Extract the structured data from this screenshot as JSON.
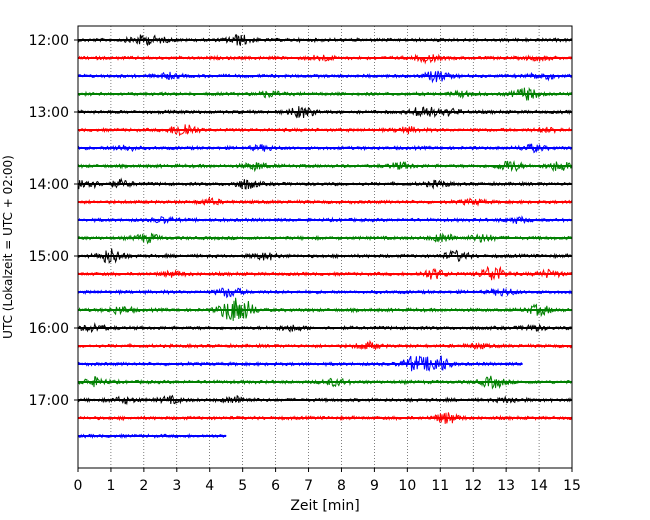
{
  "chart_data": {
    "type": "line",
    "title": "",
    "xlabel": "Zeit  [min]",
    "ylabel": "UTC (Lokalzeit = UTC + 02:00)",
    "xlim": [
      0,
      15
    ],
    "x_ticks": [
      "0",
      "1",
      "2",
      "3",
      "4",
      "5",
      "6",
      "7",
      "8",
      "9",
      "10",
      "11",
      "12",
      "13",
      "14",
      "15"
    ],
    "y_ticks": [
      "12:00",
      "13:00",
      "14:00",
      "15:00",
      "16:00",
      "17:00"
    ],
    "grid": "vertical dotted",
    "trace_interval_minutes": 15,
    "colors": [
      "#000000",
      "#ff0000",
      "#0000ff",
      "#008000"
    ],
    "series": [
      {
        "start": "12:00",
        "color": "#000000",
        "end_min": 15,
        "events": [
          [
            1.9,
            1.2
          ],
          [
            4.9,
            1.5
          ],
          [
            2.4,
            0.7
          ]
        ]
      },
      {
        "start": "12:15",
        "color": "#ff0000",
        "end_min": 15,
        "events": [
          [
            7.4,
            0.8
          ],
          [
            10.6,
            1.0
          ],
          [
            14.0,
            0.6
          ]
        ]
      },
      {
        "start": "12:30",
        "color": "#0000ff",
        "end_min": 15,
        "events": [
          [
            2.7,
            0.8
          ],
          [
            10.9,
            1.6
          ],
          [
            14.1,
            1.0
          ]
        ]
      },
      {
        "start": "12:45",
        "color": "#008000",
        "end_min": 15,
        "events": [
          [
            5.8,
            0.8
          ],
          [
            11.7,
            0.7
          ],
          [
            13.6,
            1.8
          ]
        ]
      },
      {
        "start": "13:00",
        "color": "#000000",
        "end_min": 15,
        "events": [
          [
            6.8,
            1.6
          ],
          [
            10.5,
            1.8
          ],
          [
            11.3,
            0.8
          ]
        ]
      },
      {
        "start": "13:15",
        "color": "#ff0000",
        "end_min": 15,
        "events": [
          [
            3.2,
            2.2
          ],
          [
            10.0,
            0.8
          ],
          [
            14.3,
            0.6
          ]
        ]
      },
      {
        "start": "13:30",
        "color": "#0000ff",
        "end_min": 15,
        "events": [
          [
            1.4,
            0.8
          ],
          [
            5.6,
            0.7
          ],
          [
            13.8,
            1.0
          ]
        ]
      },
      {
        "start": "13:45",
        "color": "#008000",
        "end_min": 15,
        "events": [
          [
            5.4,
            1.0
          ],
          [
            9.8,
            0.9
          ],
          [
            13.1,
            1.6
          ],
          [
            14.6,
            1.4
          ]
        ]
      },
      {
        "start": "14:00",
        "color": "#000000",
        "end_min": 15,
        "events": [
          [
            0.2,
            1.6
          ],
          [
            1.3,
            1.0
          ],
          [
            5.1,
            1.4
          ],
          [
            10.9,
            0.8
          ]
        ]
      },
      {
        "start": "14:15",
        "color": "#ff0000",
        "end_min": 15,
        "events": [
          [
            4.0,
            0.8
          ],
          [
            12.0,
            0.7
          ]
        ]
      },
      {
        "start": "14:30",
        "color": "#0000ff",
        "end_min": 15,
        "events": [
          [
            2.6,
            0.7
          ],
          [
            13.3,
            0.8
          ]
        ]
      },
      {
        "start": "14:45",
        "color": "#008000",
        "end_min": 15,
        "events": [
          [
            2.1,
            1.2
          ],
          [
            11.1,
            1.2
          ],
          [
            12.3,
            1.0
          ]
        ]
      },
      {
        "start": "15:00",
        "color": "#000000",
        "end_min": 15,
        "events": [
          [
            1.0,
            2.2
          ],
          [
            5.7,
            1.0
          ],
          [
            11.5,
            1.4
          ]
        ]
      },
      {
        "start": "15:15",
        "color": "#ff0000",
        "end_min": 15,
        "events": [
          [
            2.9,
            0.8
          ],
          [
            10.8,
            1.4
          ],
          [
            12.6,
            2.4
          ],
          [
            14.3,
            1.0
          ]
        ]
      },
      {
        "start": "15:30",
        "color": "#0000ff",
        "end_min": 15,
        "events": [
          [
            4.6,
            1.4
          ],
          [
            12.9,
            1.0
          ]
        ]
      },
      {
        "start": "15:45",
        "color": "#008000",
        "end_min": 15,
        "events": [
          [
            1.3,
            1.0
          ],
          [
            4.6,
            2.4
          ],
          [
            5.0,
            2.8
          ],
          [
            14.0,
            1.4
          ]
        ]
      },
      {
        "start": "16:00",
        "color": "#000000",
        "end_min": 15,
        "events": [
          [
            0.5,
            1.0
          ],
          [
            6.5,
            0.8
          ],
          [
            13.8,
            0.7
          ]
        ]
      },
      {
        "start": "16:15",
        "color": "#ff0000",
        "end_min": 15,
        "events": [
          [
            8.8,
            1.0
          ],
          [
            12.1,
            0.6
          ]
        ]
      },
      {
        "start": "16:30",
        "color": "#0000ff",
        "end_min": 13.5,
        "events": [
          [
            10.2,
            2.2
          ],
          [
            10.9,
            2.6
          ]
        ]
      },
      {
        "start": "16:45",
        "color": "#008000",
        "end_min": 15,
        "events": [
          [
            0.5,
            1.2
          ],
          [
            7.8,
            1.0
          ],
          [
            12.6,
            1.6
          ]
        ]
      },
      {
        "start": "17:00",
        "color": "#000000",
        "end_min": 15,
        "events": [
          [
            1.4,
            0.8
          ],
          [
            2.8,
            0.9
          ],
          [
            4.8,
            1.0
          ],
          [
            13.1,
            0.7
          ]
        ]
      },
      {
        "start": "17:15",
        "color": "#ff0000",
        "end_min": 15,
        "events": [
          [
            11.2,
            1.6
          ]
        ]
      },
      {
        "start": "17:30",
        "color": "#0000ff",
        "end_min": 4.5,
        "events": []
      }
    ]
  }
}
